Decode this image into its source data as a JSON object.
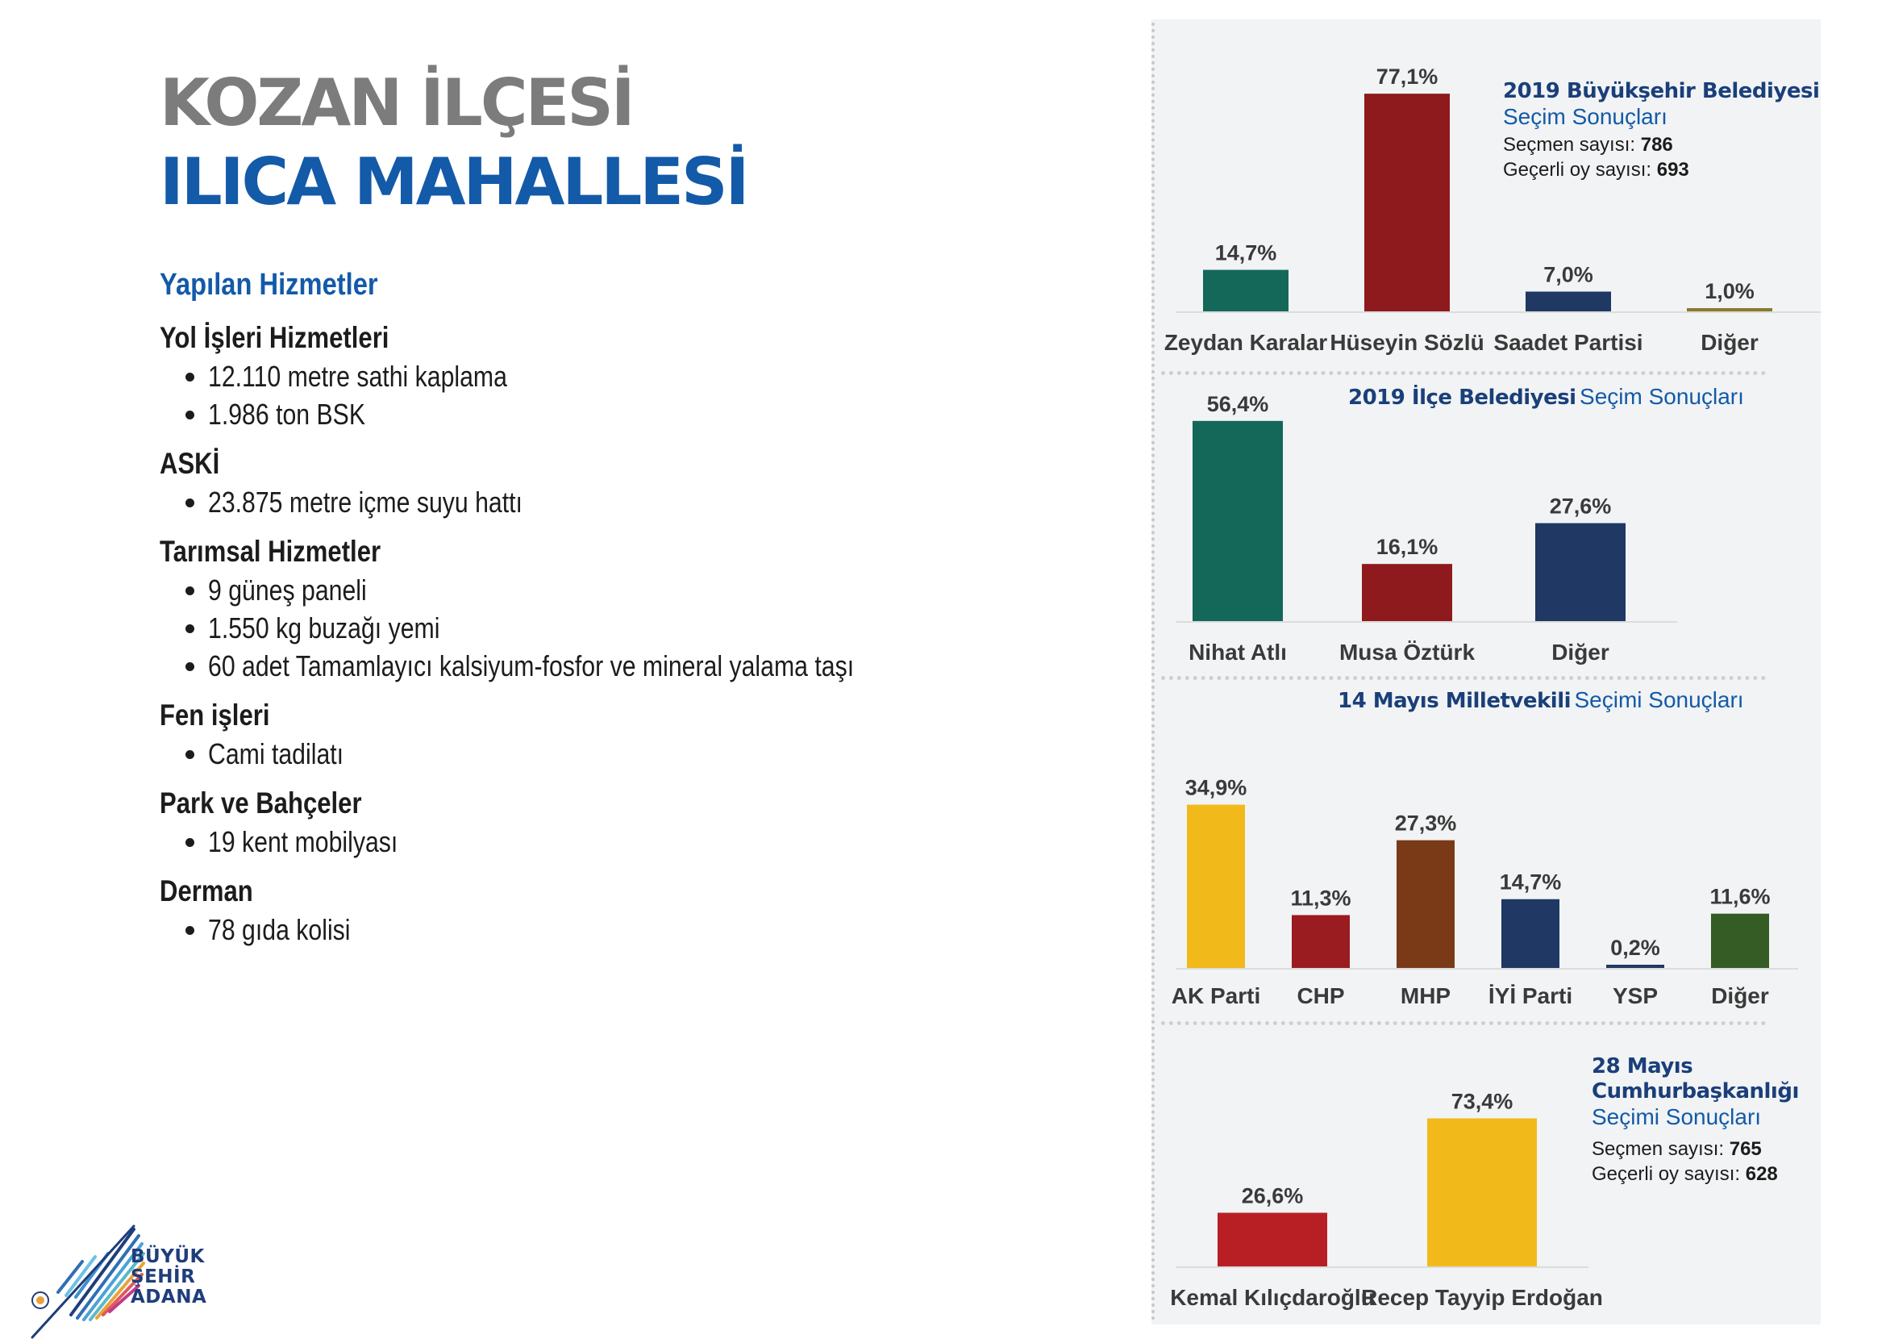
{
  "title": {
    "line1": "KOZAN İLÇESİ",
    "line2": "ILICA MAHALLESİ"
  },
  "services": {
    "heading": "Yapılan Hizmetler",
    "groups": [
      {
        "title": "Yol İşleri Hizmetleri",
        "items": [
          "12.110 metre sathi kaplama",
          "1.986 ton BSK"
        ]
      },
      {
        "title": "ASKİ",
        "items": [
          "23.875 metre içme suyu hattı"
        ]
      },
      {
        "title": "Tarımsal Hizmetler",
        "items": [
          "9 güneş paneli",
          "1.550 kg buzağı yemi",
          "60 adet Tamamlayıcı kalsiyum-fosfor ve mineral yalama taşı"
        ]
      },
      {
        "title": "Fen işleri",
        "items": [
          "Cami tadilatı"
        ]
      },
      {
        "title": "Park ve Bahçeler",
        "items": [
          "19 kent mobilyası"
        ]
      },
      {
        "title": "Derman",
        "items": [
          "78 gıda kolisi"
        ]
      }
    ]
  },
  "logo": {
    "line1": "BÜYÜK",
    "line2": "ŞEHİR",
    "line3": "ADANA"
  },
  "chart_data": [
    {
      "type": "bar",
      "title_bold": "2019 Büyükşehir Belediyesi",
      "title_normal": "Seçim Sonuçları",
      "voters_label": "Seçmen sayısı:",
      "voters_value": "786",
      "valid_label": "Geçerli oy sayısı:",
      "valid_value": "693",
      "categories": [
        "Zeydan Karalar",
        "Hüseyin Sözlü",
        "Saadet Partisi",
        "Diğer"
      ],
      "values": [
        14.7,
        77.1,
        7.0,
        1.0
      ],
      "labels": [
        "14,7%",
        "77,1%",
        "7,0%",
        "1,0%"
      ],
      "colors": [
        "#13685a",
        "#8e1a1e",
        "#1f3864",
        "#8a7a2e"
      ]
    },
    {
      "type": "bar",
      "title_bold": "2019 İlçe Belediyesi",
      "title_normal": "Seçim Sonuçları",
      "categories": [
        "Nihat Atlı",
        "Musa Öztürk",
        "Diğer"
      ],
      "values": [
        56.4,
        16.1,
        27.6
      ],
      "labels": [
        "56,4%",
        "16,1%",
        "27,6%"
      ],
      "colors": [
        "#13685a",
        "#8e1a1e",
        "#1f3864"
      ]
    },
    {
      "type": "bar",
      "title_bold": "14 Mayıs Milletvekili",
      "title_normal": "Seçimi Sonuçları",
      "categories": [
        "AK Parti",
        "CHP",
        "MHP",
        "İYİ Parti",
        "YSP",
        "Diğer"
      ],
      "values": [
        34.9,
        11.3,
        27.3,
        14.7,
        0.2,
        11.6
      ],
      "labels": [
        "34,9%",
        "11,3%",
        "27,3%",
        "14,7%",
        "0,2%",
        "11,6%"
      ],
      "colors": [
        "#f2b91b",
        "#9a1c20",
        "#7a3a17",
        "#1f3864",
        "#1f3864",
        "#355c24"
      ]
    },
    {
      "type": "bar",
      "title_bold1": "28 Mayıs",
      "title_bold2": "Cumhurbaşkanlığı",
      "title_normal": "Seçimi Sonuçları",
      "voters_label": "Seçmen sayısı:",
      "voters_value": "765",
      "valid_label": "Geçerli oy sayısı:",
      "valid_value": "628",
      "categories": [
        "Kemal Kılıçdaroğlu",
        "Recep Tayyip Erdoğan"
      ],
      "values": [
        26.6,
        73.4
      ],
      "labels": [
        "26,6%",
        "73,4%"
      ],
      "colors": [
        "#b81f25",
        "#f2b91b"
      ]
    }
  ]
}
